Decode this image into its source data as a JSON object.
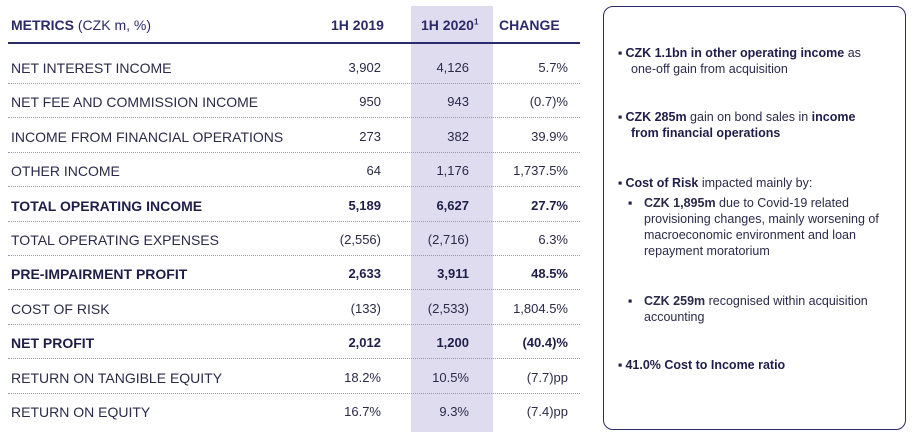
{
  "table": {
    "header": {
      "metrics": "METRICS",
      "unit": "(CZK m, %)",
      "col1": "1H 2019",
      "col2": "1H 2020",
      "col2_sup": "1",
      "col3": "CHANGE"
    },
    "rows": [
      {
        "label": "NET INTEREST INCOME",
        "v2019": "3,902",
        "v2020": "4,126",
        "change": "5.7%",
        "bold": false
      },
      {
        "label": "NET FEE AND COMMISSION INCOME",
        "v2019": "950",
        "v2020": "943",
        "change": "(0.7)%",
        "bold": false
      },
      {
        "label": "INCOME FROM FINANCIAL OPERATIONS",
        "v2019": "273",
        "v2020": "382",
        "change": "39.9%",
        "bold": false
      },
      {
        "label": "OTHER INCOME",
        "v2019": "64",
        "v2020": "1,176",
        "change": "1,737.5%",
        "bold": false
      },
      {
        "label": "TOTAL OPERATING INCOME",
        "v2019": "5,189",
        "v2020": "6,627",
        "change": "27.7%",
        "bold": true
      },
      {
        "label": "TOTAL OPERATING EXPENSES",
        "v2019": "(2,556)",
        "v2020": "(2,716)",
        "change": "6.3%",
        "bold": false
      },
      {
        "label": "PRE-IMPAIRMENT PROFIT",
        "v2019": "2,633",
        "v2020": "3,911",
        "change": "48.5%",
        "bold": true
      },
      {
        "label": "COST OF RISK",
        "v2019": "(133)",
        "v2020": "(2,533)",
        "change": "1,804.5%",
        "bold": false
      },
      {
        "label": "NET PROFIT",
        "v2019": "2,012",
        "v2020": "1,200",
        "change": "(40.4)%",
        "bold": true
      },
      {
        "label": "RETURN ON TANGIBLE EQUITY",
        "v2019": "18.2%",
        "v2020": "10.5%",
        "change": "(7.7)pp",
        "bold": false
      },
      {
        "label": "RETURN ON EQUITY",
        "v2019": "16.7%",
        "v2020": "9.3%",
        "change": "(7.4)pp",
        "bold": false
      }
    ]
  },
  "sidebar": {
    "b1_bold": "CZK 1.1bn in other operating income",
    "b1_rest": " as",
    "b1_line2": "one-off gain from acquisition",
    "b2_bold": "CZK 285m",
    "b2_mid": " gain on bond sales in ",
    "b2_bold2": "income",
    "b2_line2": "from financial operations",
    "b3_bold": "Cost of Risk",
    "b3_rest": " impacted mainly by:",
    "s1_bold": "CZK 1,895m",
    "s1_rest": " due to Covid-19 related provisioning changes, mainly worsening of macroeconomic environment and loan repayment moratorium",
    "s2_bold": "CZK 259m",
    "s2_rest": " recognised within acquisition accounting",
    "b4": "41.0% Cost to Income ratio"
  },
  "colors": {
    "navy": "#2b2a6a",
    "highlight": "#dfdcef"
  }
}
